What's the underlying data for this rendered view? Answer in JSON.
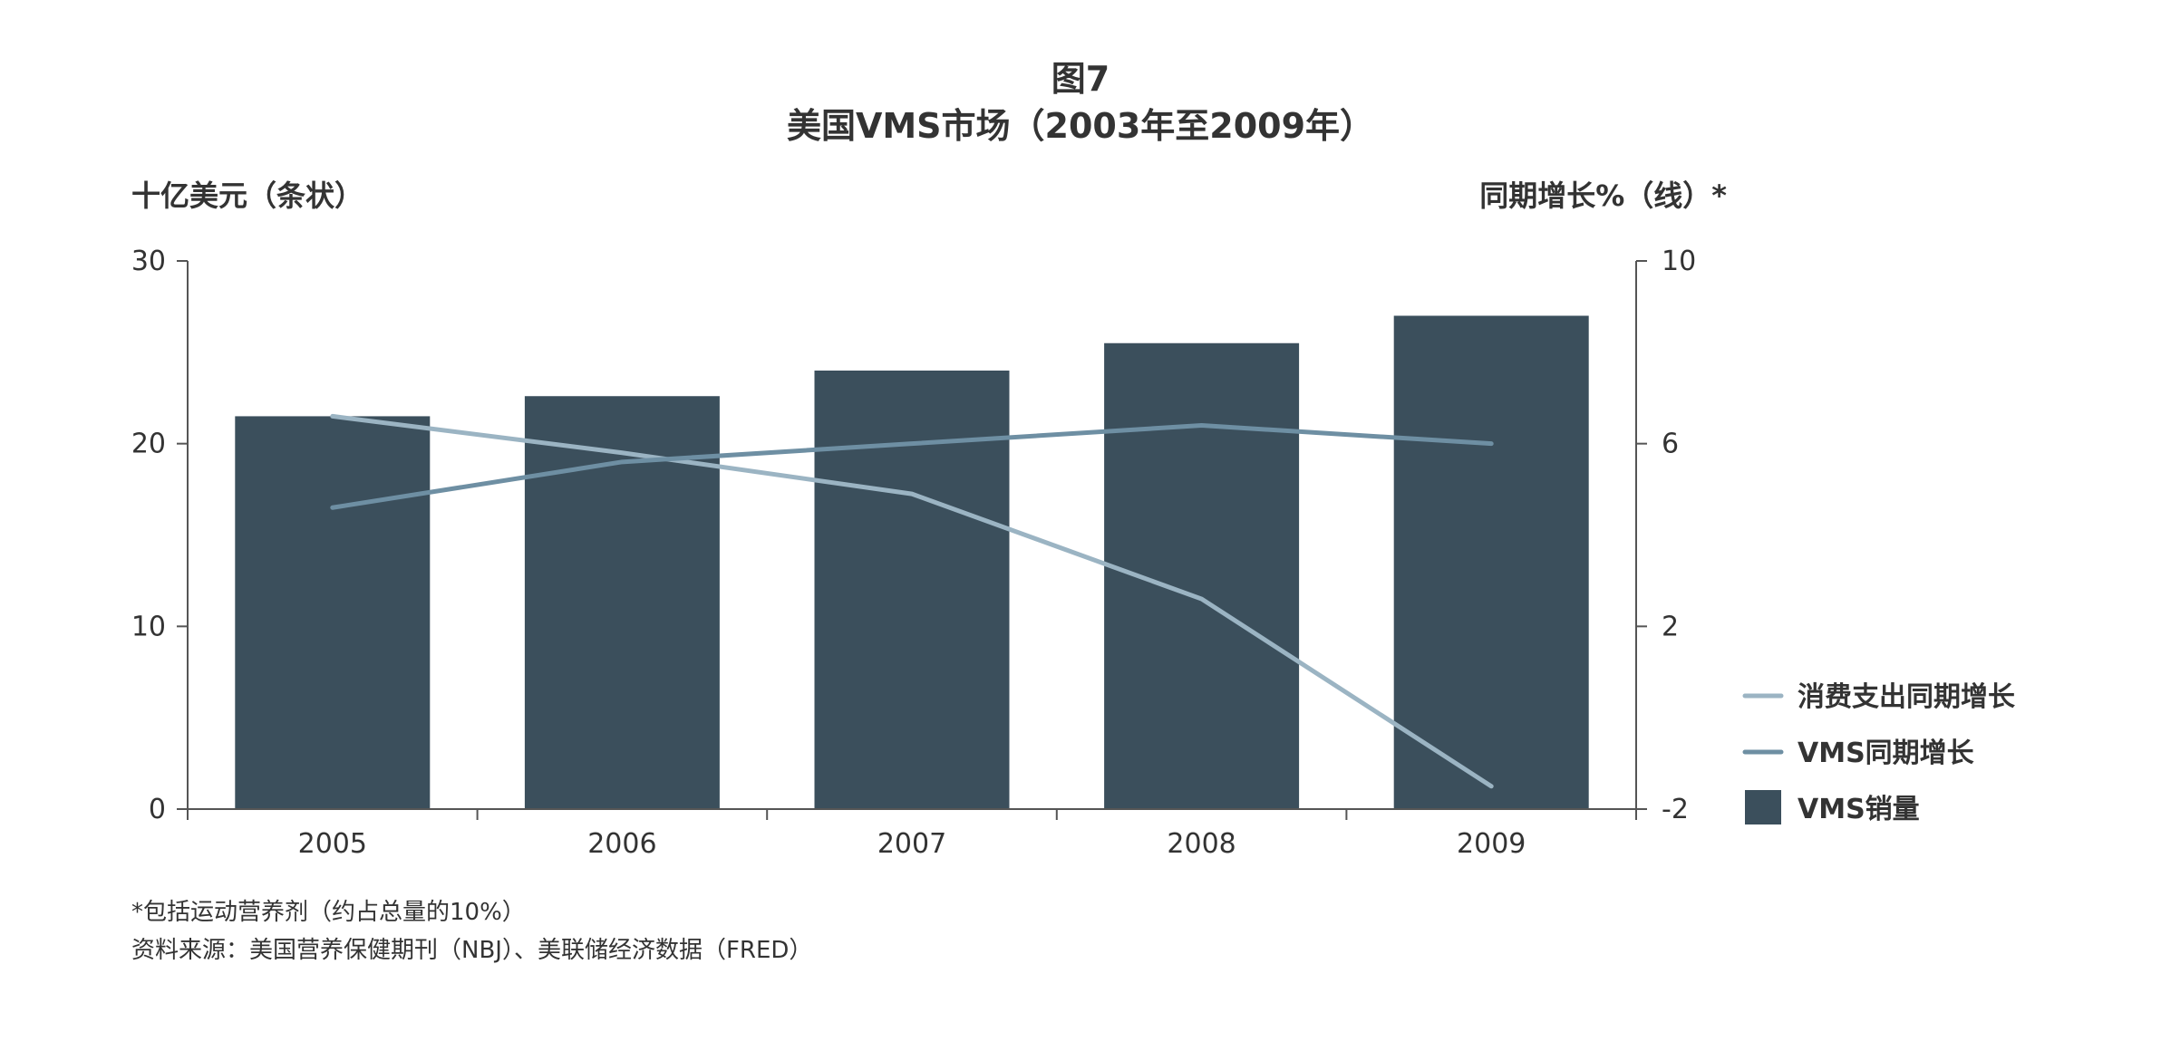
{
  "chart_data": {
    "type": "bar",
    "title": "图7",
    "subtitle": "美国VMS市场（2003年至2009年）",
    "y_left_label": "十亿美元（条状）",
    "y_right_label": "同期增长%（线）*",
    "categories": [
      "2005",
      "2006",
      "2007",
      "2008",
      "2009"
    ],
    "y_left_lim": [
      0,
      30
    ],
    "y_left_ticks": [
      "0",
      "10",
      "20",
      "30"
    ],
    "y_right_lim": [
      -2,
      10
    ],
    "y_right_ticks": [
      "-2",
      "2",
      "6",
      "10"
    ],
    "series": [
      {
        "name": "VMS销量",
        "type": "bar",
        "axis": "left",
        "color": "#3b4f5c",
        "values": [
          21.5,
          22.6,
          24.0,
          25.5,
          27.0
        ]
      },
      {
        "name": "VMS同期增长",
        "type": "line",
        "axis": "right",
        "color": "#6e8fa3",
        "values": [
          4.6,
          5.6,
          6.0,
          6.4,
          6.0
        ]
      },
      {
        "name": "消费支出同期增长",
        "type": "line",
        "axis": "right",
        "color": "#9bb4c3",
        "values": [
          6.6,
          5.8,
          4.9,
          2.6,
          -1.5
        ]
      }
    ],
    "legend_position": "right",
    "grid": false
  },
  "notes": {
    "footnote": "*包括运动营养剂（约占总量的10%）",
    "source": "资料来源：美国营养保健期刊（NBJ）、美联储经济数据（FRED）"
  }
}
